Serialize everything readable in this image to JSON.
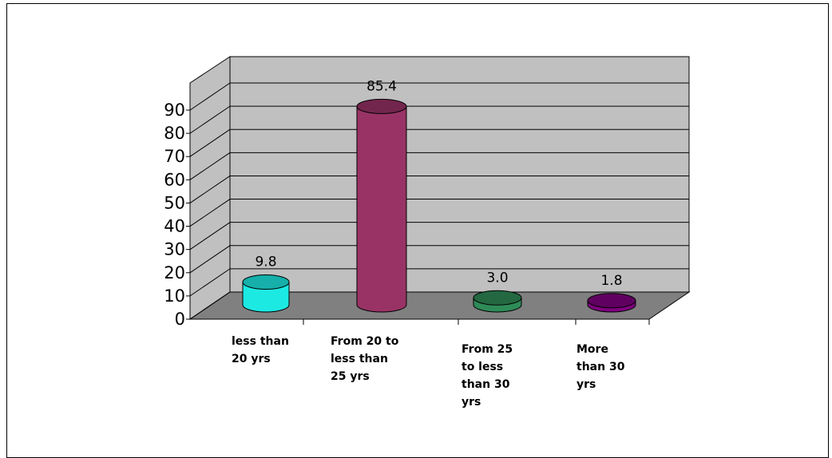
{
  "chart_data": {
    "type": "bar",
    "categories": [
      [
        "less than",
        "20 yrs"
      ],
      [
        "From 20 to",
        "less than",
        "25 yrs"
      ],
      [
        "From 25",
        "to less",
        "than 30",
        "yrs"
      ],
      [
        "More",
        "than 30",
        "yrs"
      ]
    ],
    "values": [
      9.8,
      85.4,
      3.0,
      1.8
    ],
    "value_labels": [
      "9.8",
      "85.4",
      "3.0",
      "1.8"
    ],
    "colors": [
      "#1de9e3",
      "#993366",
      "#2e8b57",
      "#800080"
    ],
    "yticks": [
      0,
      10,
      20,
      30,
      40,
      50,
      60,
      70,
      80,
      90
    ],
    "ylim": [
      0,
      90
    ],
    "grid": true,
    "style": "3d-cylinder",
    "title": "",
    "xlabel": "",
    "ylabel": ""
  }
}
